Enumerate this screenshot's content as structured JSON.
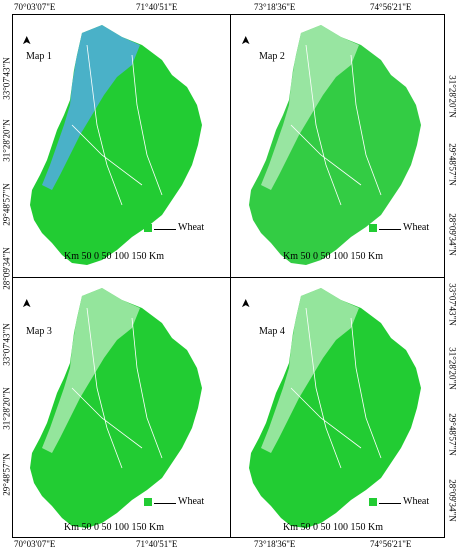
{
  "top_coords": [
    "70°03'07\"E",
    "71°40'51\"E",
    "73°18'36\"E",
    "74°56'21\"E"
  ],
  "bottom_coords": [
    "70°03'07\"E",
    "71°40'51\"E",
    "73°18'36\"E",
    "74°56'21\"E"
  ],
  "left_coords": [
    "33°07'43\"N",
    "31°28'20\"N",
    "29°48'57\"N",
    "28°09'34\"N",
    "33°07'43\"N",
    "31°28'20\"N",
    "29°48'57\"N"
  ],
  "right_coords": [
    "31°28'20\"N",
    "29°48'57\"N",
    "28°09'34\"N",
    "33°07'43\"N",
    "31°28'20\"N",
    "29°48'57\"N",
    "28°09'34\"N"
  ],
  "maps": [
    {
      "label": "Map 1",
      "legend": "Wheat",
      "scale": "Km 50   0      50  100  150 Km",
      "fill": "#22cc33",
      "accent": "#55aaee"
    },
    {
      "label": "Map 2",
      "legend": "Wheat",
      "scale": "Km 50   0      50  100  150 Km",
      "fill": "#33cc44",
      "accent": "#bbeec0"
    },
    {
      "label": "Map 3",
      "legend": "Wheat",
      "scale": "Km 50   0      50  100  150 Km",
      "fill": "#22cc33",
      "accent": "#bbeec0"
    },
    {
      "label": "Map 4",
      "legend": "Wheat",
      "scale": "Km 50   0      50  100  150 Km",
      "fill": "#22cc33",
      "accent": "#bbeec0"
    }
  ],
  "north_symbol": "north-arrow"
}
